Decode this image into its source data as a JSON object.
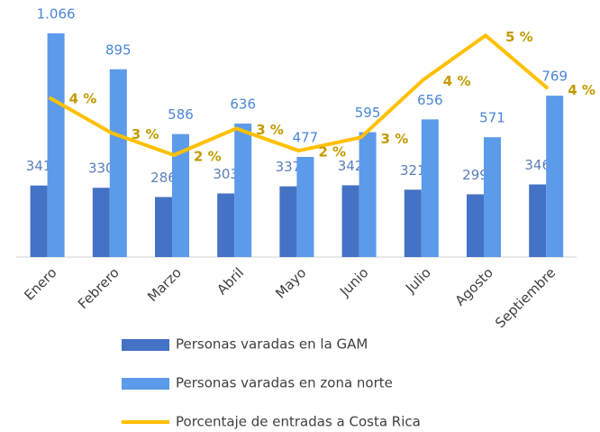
{
  "chart_data": {
    "type": "bar_line",
    "categories": [
      "Enero",
      "Febrero",
      "Marzo",
      "Abril",
      "Mayo",
      "Junio",
      "Julio",
      "Agosto",
      "Septiembre"
    ],
    "series": [
      {
        "name": "Personas varadas en la GAM",
        "type": "bar",
        "color": "#4472c4",
        "label_color": "#5b7fb8",
        "values": [
          341,
          330,
          286,
          303,
          337,
          342,
          321,
          299,
          346
        ]
      },
      {
        "name": "Personas varadas en zona norte",
        "type": "bar",
        "color": "#5b9bea",
        "label_color": "#4a86d8",
        "values": [
          1066,
          895,
          586,
          636,
          477,
          595,
          656,
          571,
          769
        ],
        "value_labels": [
          "1.066",
          "895",
          "586",
          "636",
          "477",
          "595",
          "656",
          "571",
          "769"
        ]
      },
      {
        "name": "Porcentaje de entradas a Costa Rica",
        "type": "line",
        "axis": "y2",
        "color": "#ffc000",
        "label_color": "#c49a00",
        "values": [
          3.6,
          2.8,
          2.3,
          2.9,
          2.4,
          2.7,
          4.0,
          5.0,
          3.8
        ],
        "value_labels": [
          "4 %",
          "3 %",
          "2 %",
          "3 %",
          "2 %",
          "3 %",
          "4 %",
          "5 %",
          "4 %"
        ]
      }
    ],
    "ylim": [
      0,
      1225
    ],
    "y2lim": [
      0,
      5.8
    ]
  }
}
